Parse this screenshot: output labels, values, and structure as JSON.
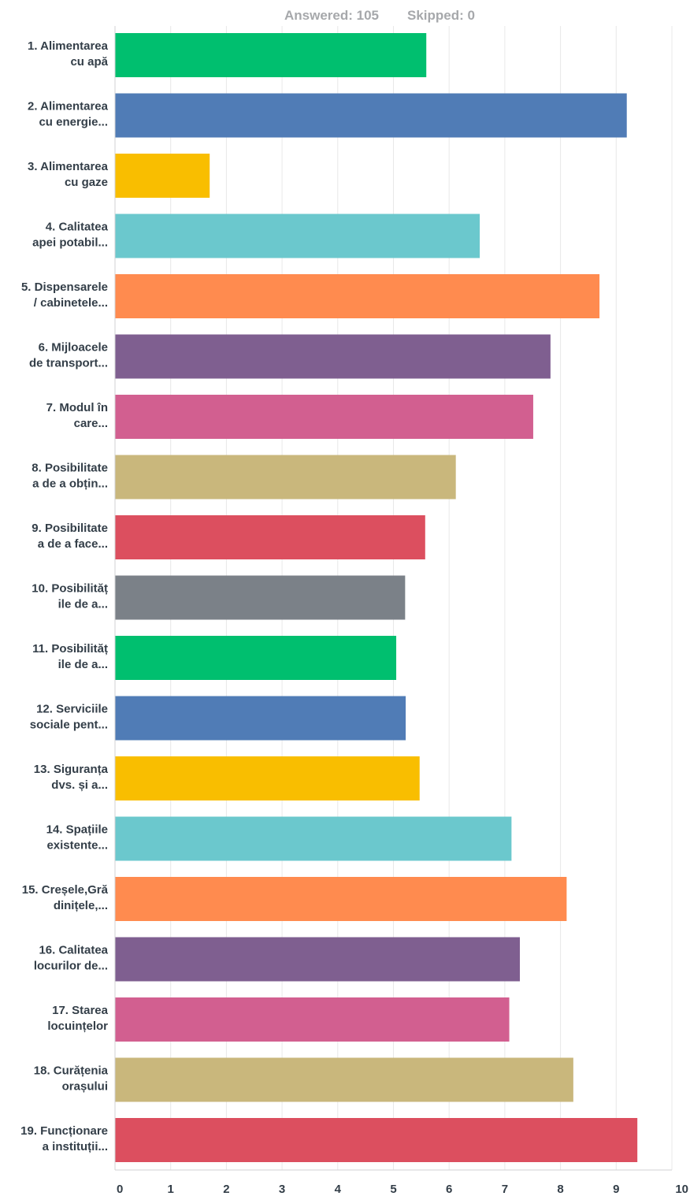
{
  "header": {
    "answered_text": "Answered: 105",
    "skipped_text": "Skipped: 0"
  },
  "chart_data": {
    "type": "bar",
    "orientation": "horizontal",
    "categories": [
      [
        "1. Alimentarea",
        "cu apă"
      ],
      [
        "2. Alimentarea",
        "cu energie..."
      ],
      [
        "3. Alimentarea",
        "cu gaze"
      ],
      [
        "4. Calitatea",
        "apei potabil..."
      ],
      [
        "5. Dispensarele",
        "/ cabinetele..."
      ],
      [
        "6. Mijloacele",
        "de transport..."
      ],
      [
        "7. Modul în",
        "care..."
      ],
      [
        "8. Posibilitate",
        "a de a obțin..."
      ],
      [
        "9. Posibilitate",
        "a de a face..."
      ],
      [
        "10. Posibilităț",
        "ile de a..."
      ],
      [
        "11. Posibilităț",
        "ile de a..."
      ],
      [
        "12. Serviciile",
        "sociale pent..."
      ],
      [
        "13. Siguranța",
        "dvs. și a..."
      ],
      [
        "14. Spațiile",
        "existente..."
      ],
      [
        "15. Creșele,Gră",
        "dinițele,..."
      ],
      [
        "16. Calitatea",
        "locurilor de..."
      ],
      [
        "17. Starea",
        "locuințelor"
      ],
      [
        "18. Curățenia",
        "orașului"
      ],
      [
        "19. Funcționare",
        "a instituții..."
      ]
    ],
    "values": [
      5.59,
      9.19,
      1.7,
      6.55,
      8.7,
      7.82,
      7.51,
      6.12,
      5.57,
      5.21,
      5.05,
      5.22,
      5.47,
      7.12,
      8.11,
      7.27,
      7.08,
      8.23,
      9.38
    ],
    "colors": [
      "#00bf6f",
      "#507cb6",
      "#f9be00",
      "#6bc8cd",
      "#ff8b4f",
      "#7f5f90",
      "#d25f90",
      "#c9b77c",
      "#dc4f5f",
      "#7b8188",
      "#00bf6f",
      "#507cb6",
      "#f9be00",
      "#6bc8cd",
      "#ff8b4f",
      "#7f5f90",
      "#d25f90",
      "#c9b77c",
      "#dc4f5f"
    ],
    "xlim": [
      0,
      10
    ],
    "xticks": [
      0,
      1,
      2,
      3,
      4,
      5,
      6,
      7,
      8,
      9,
      10
    ],
    "grid": true
  }
}
